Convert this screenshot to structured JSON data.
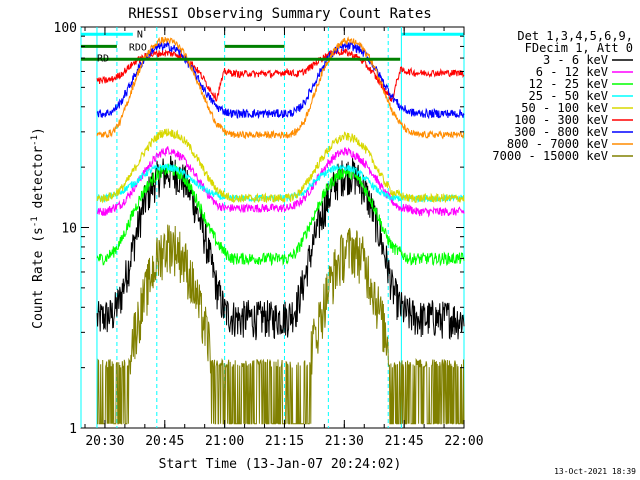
{
  "chart_data": {
    "type": "line",
    "title": "RHESSI Observing Summary Count Rates",
    "xlabel": "Start Time (13-Jan-07 20:24:02)",
    "ylabel_main": "Count Rate (s",
    "ylabel_sup1": "-1",
    "ylabel_mid": " detector",
    "ylabel_sup2": "-1",
    "ylabel_end": ")",
    "footer_date": "13-Oct-2021 18:39",
    "x_unit": "minutes after 20:24:02",
    "xlim": [
      0,
      96
    ],
    "ylim": [
      1,
      100
    ],
    "yscale": "log",
    "x_ticks": [
      {
        "label": "20:30",
        "x": 6
      },
      {
        "label": "20:45",
        "x": 21
      },
      {
        "label": "21:00",
        "x": 36
      },
      {
        "label": "21:15",
        "x": 51
      },
      {
        "label": "21:30",
        "x": 66
      },
      {
        "label": "21:45",
        "x": 81
      },
      {
        "label": "22:00",
        "x": 96
      }
    ],
    "y_ticks": [
      {
        "label": "1",
        "y": 1
      },
      {
        "label": "10",
        "y": 10
      },
      {
        "label": "100",
        "y": 100
      }
    ],
    "legend": {
      "header1": "Det 1,3,4,5,6,9,",
      "header2": "FDecim 1, Att 0",
      "placement": "top-right, outside plot"
    },
    "flags": [
      {
        "label": "RDO",
        "color": "#008000"
      },
      {
        "label": "RD",
        "color": "#008000"
      },
      {
        "label": "N",
        "color": "#00ffff"
      }
    ],
    "night_intervals": [
      [
        0,
        4
      ],
      [
        80.3,
        96
      ]
    ],
    "saa_boundaries": [
      9,
      19,
      36,
      51,
      62,
      77
    ],
    "series": [
      {
        "name": "3 - 6 keV",
        "color": "#000000",
        "x": [
          0,
          2,
          4,
          6,
          8,
          10,
          12,
          14,
          16,
          18,
          20,
          22,
          24,
          26,
          28,
          30,
          32,
          34,
          36,
          38,
          40,
          42,
          44,
          46,
          48,
          50,
          52,
          54,
          56,
          58,
          60,
          62,
          64,
          66,
          68,
          70,
          72,
          74,
          76,
          78,
          80,
          82,
          84,
          86,
          88,
          90,
          92,
          94,
          96
        ],
        "y": [
          null,
          null,
          3.5,
          3.6,
          3.7,
          4.5,
          6.5,
          9.5,
          13.5,
          16.5,
          18.5,
          19,
          18.5,
          17,
          14,
          10.5,
          7.5,
          5,
          3.8,
          3.6,
          3.5,
          3.6,
          3.5,
          3.6,
          3.5,
          3.6,
          3.6,
          4,
          5.5,
          8,
          11,
          14,
          17,
          18.5,
          18.5,
          17,
          14,
          10.5,
          7.5,
          5,
          4,
          3.7,
          3.6,
          3.5,
          3.6,
          3.5,
          3.6,
          3.5,
          3.5
        ]
      },
      {
        "name": "6 - 12 keV",
        "color": "#ff00ff",
        "x": [
          0,
          2,
          4,
          6,
          8,
          10,
          12,
          14,
          16,
          18,
          20,
          22,
          24,
          26,
          28,
          30,
          32,
          34,
          36,
          38,
          40,
          42,
          44,
          46,
          48,
          50,
          52,
          54,
          56,
          58,
          60,
          62,
          64,
          66,
          68,
          70,
          72,
          74,
          76,
          78,
          80,
          82,
          84,
          86,
          88,
          90,
          92,
          94,
          96
        ],
        "y": [
          null,
          null,
          12,
          12,
          12.5,
          13,
          14.5,
          16.5,
          19,
          21.5,
          23.5,
          24.5,
          23.5,
          21.5,
          19,
          16.5,
          14.5,
          13,
          12.5,
          12.5,
          12.5,
          12.5,
          12.5,
          12.5,
          12.5,
          12.5,
          12.5,
          13,
          14,
          16,
          18.5,
          21,
          23,
          24,
          23.5,
          22,
          20,
          17.5,
          15,
          13.5,
          12.5,
          12.5,
          12,
          12,
          12,
          12,
          12,
          12,
          12
        ]
      },
      {
        "name": "12 - 25 keV",
        "color": "#00ff00",
        "x": [
          0,
          2,
          4,
          6,
          8,
          10,
          12,
          14,
          16,
          18,
          20,
          22,
          24,
          26,
          28,
          30,
          32,
          34,
          36,
          38,
          40,
          42,
          44,
          46,
          48,
          50,
          52,
          54,
          56,
          58,
          60,
          62,
          64,
          66,
          68,
          70,
          72,
          74,
          76,
          78,
          80,
          82,
          84,
          86,
          88,
          90,
          92,
          94,
          96
        ],
        "y": [
          null,
          null,
          7,
          7,
          7.5,
          8.5,
          10.5,
          13,
          15.5,
          17.5,
          19,
          19.5,
          19,
          17.5,
          15,
          12.5,
          10,
          8.5,
          7.5,
          7,
          7,
          7,
          7,
          7,
          7,
          7,
          7,
          7.5,
          9,
          11,
          13.5,
          16,
          18,
          19,
          18.5,
          17,
          14.5,
          12,
          9.5,
          8,
          7.5,
          7,
          7,
          7,
          7,
          7,
          7,
          7,
          7
        ]
      },
      {
        "name": "25 - 50 keV",
        "color": "#00ffff",
        "x": [
          0,
          2,
          4,
          6,
          8,
          10,
          12,
          14,
          16,
          18,
          20,
          22,
          24,
          26,
          28,
          30,
          32,
          34,
          36,
          38,
          40,
          42,
          44,
          46,
          48,
          50,
          52,
          54,
          56,
          58,
          60,
          62,
          64,
          66,
          68,
          70,
          72,
          74,
          76,
          78,
          80,
          82,
          84,
          86,
          88,
          90,
          92,
          94,
          96
        ],
        "y": [
          null,
          null,
          14,
          14,
          14.5,
          15,
          16,
          17,
          18.5,
          19.5,
          20,
          20,
          19.5,
          18.5,
          17,
          16,
          15,
          14.5,
          14,
          14,
          14,
          14,
          14,
          14,
          14,
          14,
          14,
          14.5,
          15,
          16.5,
          18,
          19,
          20,
          20,
          19.5,
          18.5,
          17,
          15.5,
          14.5,
          14,
          14,
          14,
          14,
          14,
          14,
          14,
          14,
          14,
          14
        ]
      },
      {
        "name": "50 - 100 keV",
        "color": "#d8d800",
        "x": [
          0,
          2,
          4,
          6,
          8,
          10,
          12,
          14,
          16,
          18,
          20,
          22,
          24,
          26,
          28,
          30,
          32,
          34,
          36,
          38,
          40,
          42,
          44,
          46,
          48,
          50,
          52,
          54,
          56,
          58,
          60,
          62,
          64,
          66,
          68,
          70,
          72,
          74,
          76,
          78,
          80,
          82,
          84,
          86,
          88,
          90,
          92,
          94,
          96
        ],
        "y": [
          null,
          null,
          14,
          14,
          14.5,
          15.5,
          17.5,
          20.5,
          24,
          27,
          29.5,
          30,
          29,
          27,
          24,
          20.5,
          17.5,
          15.5,
          14.5,
          14,
          14,
          14,
          14,
          14,
          14,
          14,
          14,
          14.5,
          16,
          18.5,
          21.5,
          24.5,
          27,
          28.5,
          28,
          26.5,
          23.5,
          20,
          17,
          15,
          14.5,
          14,
          14,
          14,
          14,
          14,
          14,
          14,
          14
        ]
      },
      {
        "name": "100 - 300 keV",
        "color": "#ff0000",
        "x": [
          0,
          2,
          4,
          6,
          8,
          10,
          12,
          14,
          16,
          18,
          20,
          22,
          24,
          26,
          28,
          30,
          32,
          34,
          36,
          38,
          40,
          42,
          44,
          46,
          48,
          50,
          52,
          54,
          56,
          58,
          60,
          62,
          64,
          66,
          68,
          70,
          72,
          74,
          76,
          78,
          80,
          82,
          84,
          86,
          88,
          90,
          92,
          94,
          96
        ],
        "y": [
          null,
          null,
          54,
          54,
          55,
          58,
          63,
          68,
          71,
          73,
          74,
          74,
          73,
          70,
          65,
          58,
          50,
          44,
          60,
          59,
          58,
          59,
          58,
          59,
          58,
          59,
          60,
          58,
          60,
          64,
          69,
          73,
          75,
          75,
          73,
          69,
          63,
          56,
          49,
          43,
          61,
          60,
          59,
          59,
          59,
          59,
          59,
          59,
          59
        ]
      },
      {
        "name": "300 - 800 keV",
        "color": "#0000ff",
        "x": [
          0,
          2,
          4,
          6,
          8,
          10,
          12,
          14,
          16,
          18,
          20,
          22,
          24,
          26,
          28,
          30,
          32,
          34,
          36,
          38,
          40,
          42,
          44,
          46,
          48,
          50,
          52,
          54,
          56,
          58,
          60,
          62,
          64,
          66,
          68,
          70,
          72,
          74,
          76,
          78,
          80,
          82,
          84,
          86,
          88,
          90,
          92,
          94,
          96
        ],
        "y": [
          null,
          null,
          37,
          37,
          38,
          42,
          50,
          60,
          70,
          77,
          80,
          80,
          77,
          70,
          61,
          52,
          45,
          40,
          38,
          37,
          37,
          37,
          37,
          37,
          37,
          37,
          37,
          38,
          42,
          50,
          60,
          70,
          77,
          80,
          80,
          77,
          70,
          61,
          52,
          45,
          40,
          38,
          37,
          37,
          37,
          37,
          37,
          37,
          37
        ]
      },
      {
        "name": "800 - 7000 keV",
        "color": "#ff8c00",
        "x": [
          0,
          2,
          4,
          6,
          8,
          10,
          12,
          14,
          16,
          18,
          20,
          22,
          24,
          26,
          28,
          30,
          32,
          34,
          36,
          38,
          40,
          42,
          44,
          46,
          48,
          50,
          52,
          54,
          56,
          58,
          60,
          62,
          64,
          66,
          68,
          70,
          72,
          74,
          76,
          78,
          80,
          82,
          84,
          86,
          88,
          90,
          92,
          94,
          96
        ],
        "y": [
          null,
          null,
          29,
          29,
          30,
          34,
          44,
          57,
          70,
          80,
          86,
          86,
          82,
          73,
          61,
          49,
          39,
          33,
          30,
          29,
          29,
          29,
          29,
          29,
          29,
          29,
          29,
          30,
          34,
          43,
          56,
          69,
          79,
          85,
          85,
          81,
          72,
          60,
          48,
          38,
          33,
          30,
          29,
          29,
          29,
          29,
          29,
          29,
          29
        ]
      },
      {
        "name": "7000 - 15000 keV",
        "color": "#808000",
        "x": [
          0,
          2,
          4,
          6,
          8,
          10,
          12,
          14,
          16,
          18,
          20,
          22,
          24,
          26,
          28,
          30,
          32,
          34,
          36,
          38,
          40,
          42,
          44,
          46,
          48,
          50,
          52,
          54,
          56,
          58,
          60,
          62,
          64,
          66,
          68,
          70,
          72,
          74,
          76,
          78,
          80,
          82,
          84,
          86,
          88,
          90,
          92,
          94,
          96
        ],
        "y": [
          null,
          null,
          1.6,
          1.6,
          1.7,
          1.9,
          2.4,
          3.3,
          4.6,
          6.2,
          7.6,
          8.4,
          8,
          6.8,
          5.2,
          3.8,
          2.7,
          2,
          1.7,
          1.6,
          1.6,
          1.6,
          1.6,
          1.6,
          1.6,
          1.6,
          1.6,
          1.7,
          2,
          2.6,
          3.6,
          5,
          6.4,
          7.6,
          8,
          7.4,
          6,
          4.4,
          3.1,
          2.2,
          1.8,
          1.6,
          1.6,
          1.6,
          1.6,
          1.6,
          1.6,
          1.6,
          1.6
        ]
      }
    ]
  }
}
